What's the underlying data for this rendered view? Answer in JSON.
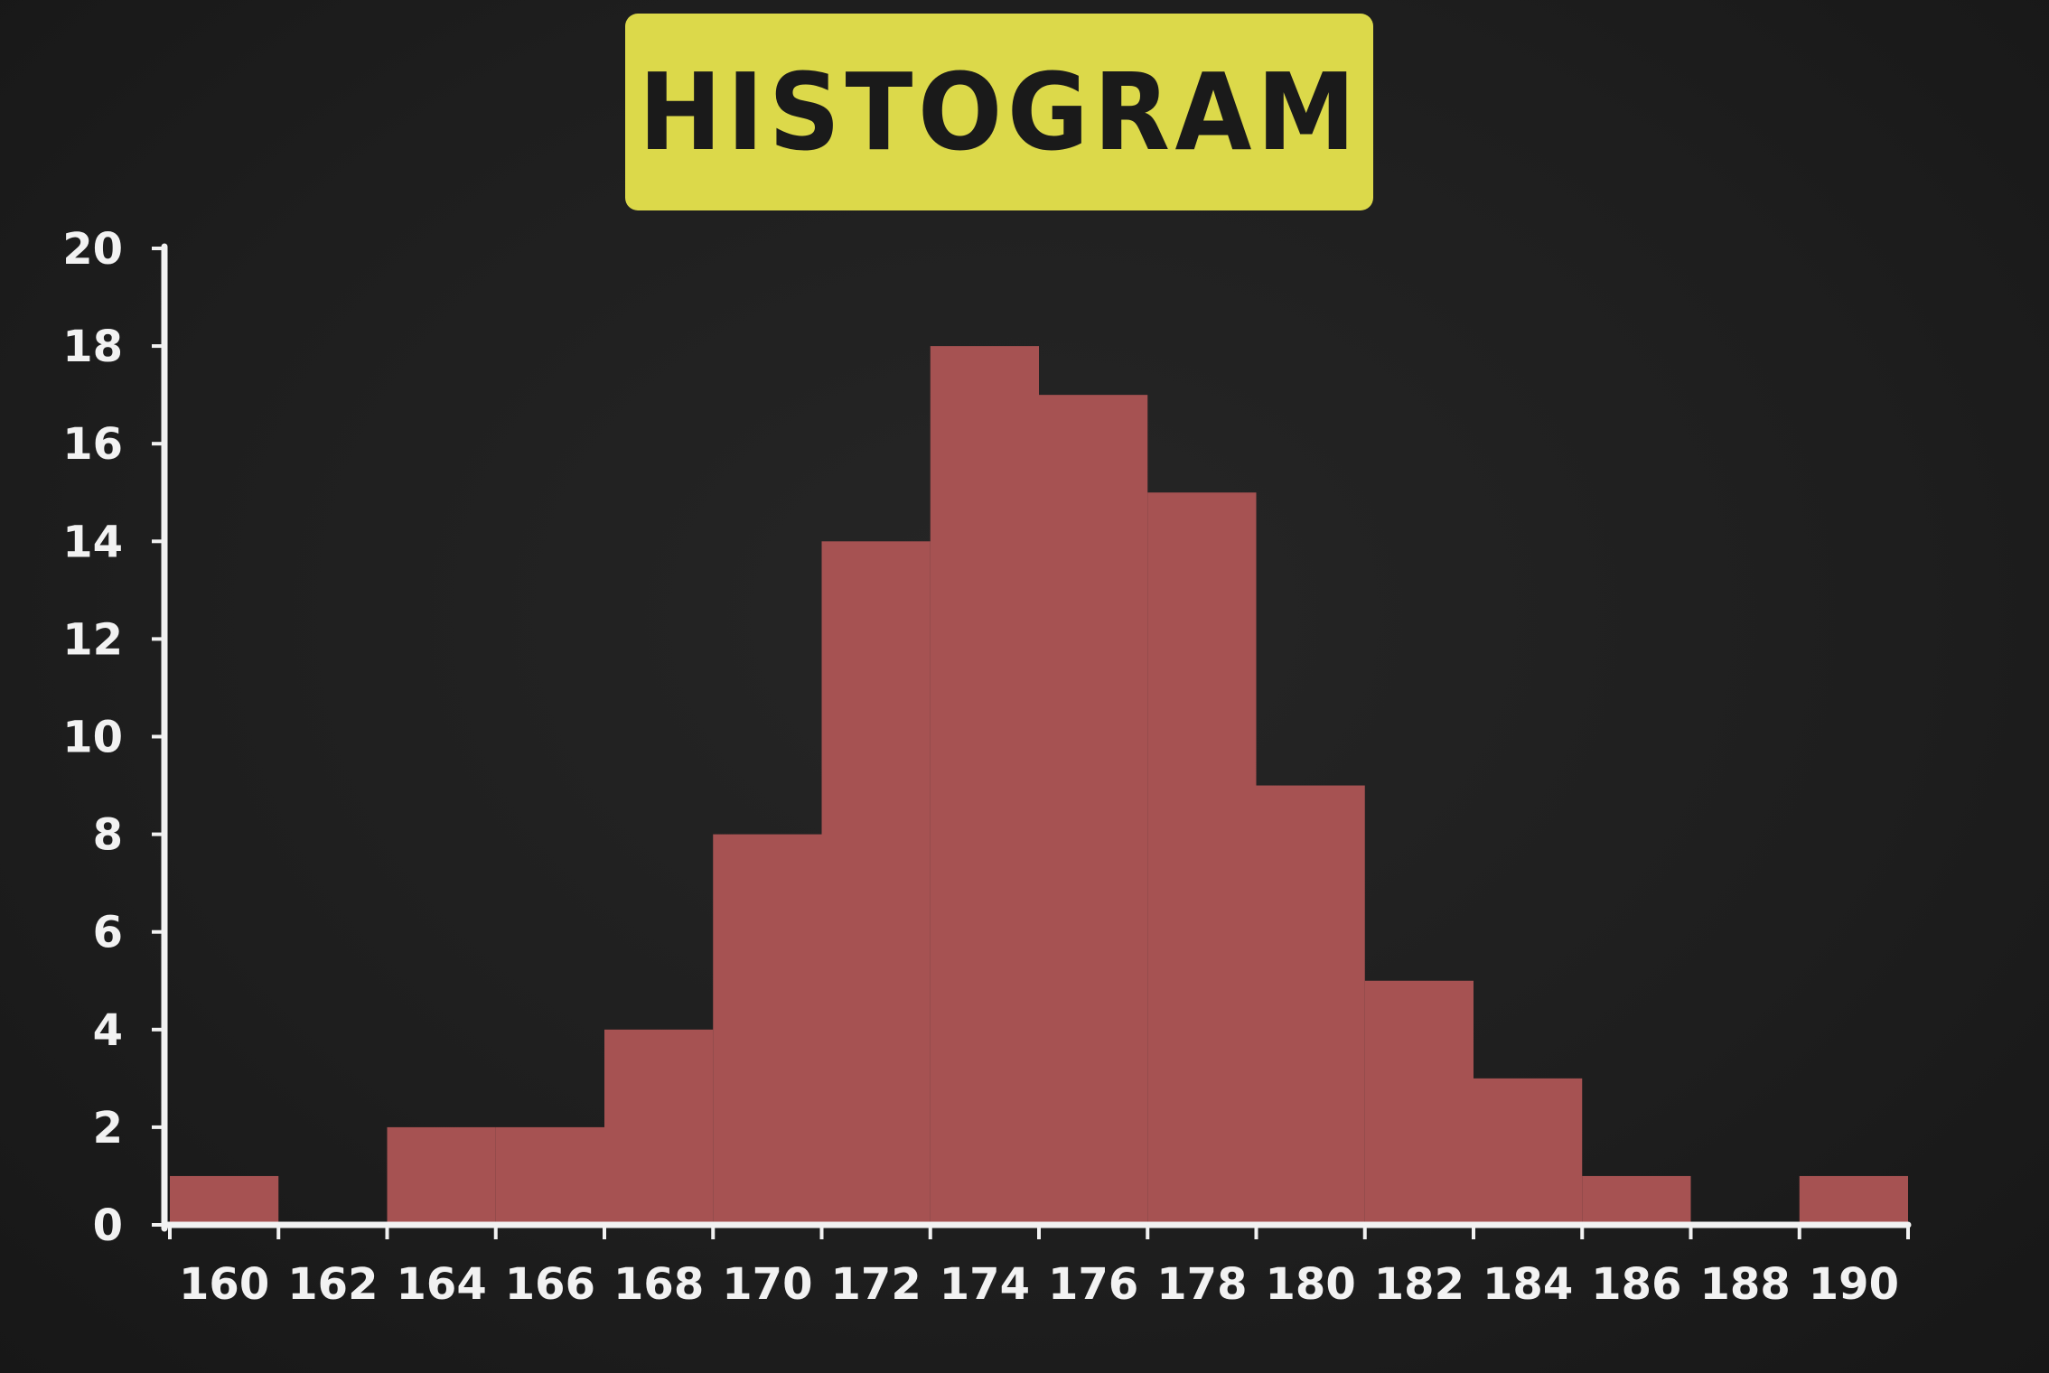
{
  "chart_data": {
    "type": "bar",
    "title": "HISTOGRAM",
    "x_tick_labels": [
      "160",
      "162",
      "164",
      "166",
      "168",
      "170",
      "172",
      "174",
      "176",
      "178",
      "180",
      "182",
      "184",
      "186",
      "188",
      "190"
    ],
    "y_tick_labels": [
      "0",
      "2",
      "4",
      "6",
      "8",
      "10",
      "12",
      "14",
      "16",
      "18",
      "20"
    ],
    "bins": [
      {
        "from": 159,
        "to": 161,
        "count": 1
      },
      {
        "from": 161,
        "to": 163,
        "count": 0
      },
      {
        "from": 163,
        "to": 165,
        "count": 2
      },
      {
        "from": 165,
        "to": 167,
        "count": 2
      },
      {
        "from": 167,
        "to": 169,
        "count": 4
      },
      {
        "from": 169,
        "to": 171,
        "count": 8
      },
      {
        "from": 171,
        "to": 173,
        "count": 14
      },
      {
        "from": 173,
        "to": 175,
        "count": 18
      },
      {
        "from": 175,
        "to": 177,
        "count": 17
      },
      {
        "from": 177,
        "to": 179,
        "count": 15
      },
      {
        "from": 179,
        "to": 181,
        "count": 9
      },
      {
        "from": 181,
        "to": 183,
        "count": 5
      },
      {
        "from": 183,
        "to": 185,
        "count": 3
      },
      {
        "from": 185,
        "to": 187,
        "count": 1
      },
      {
        "from": 187,
        "to": 189,
        "count": 0
      },
      {
        "from": 189,
        "to": 191,
        "count": 1
      }
    ],
    "xlim": [
      159,
      191
    ],
    "ylim": [
      0,
      20
    ],
    "grid": false,
    "legend": "none",
    "bar_color": "#a65252",
    "axis_color": "#f2f2f2",
    "background_color": "#1f1f1f",
    "title_box_color": "#dcd94a"
  }
}
